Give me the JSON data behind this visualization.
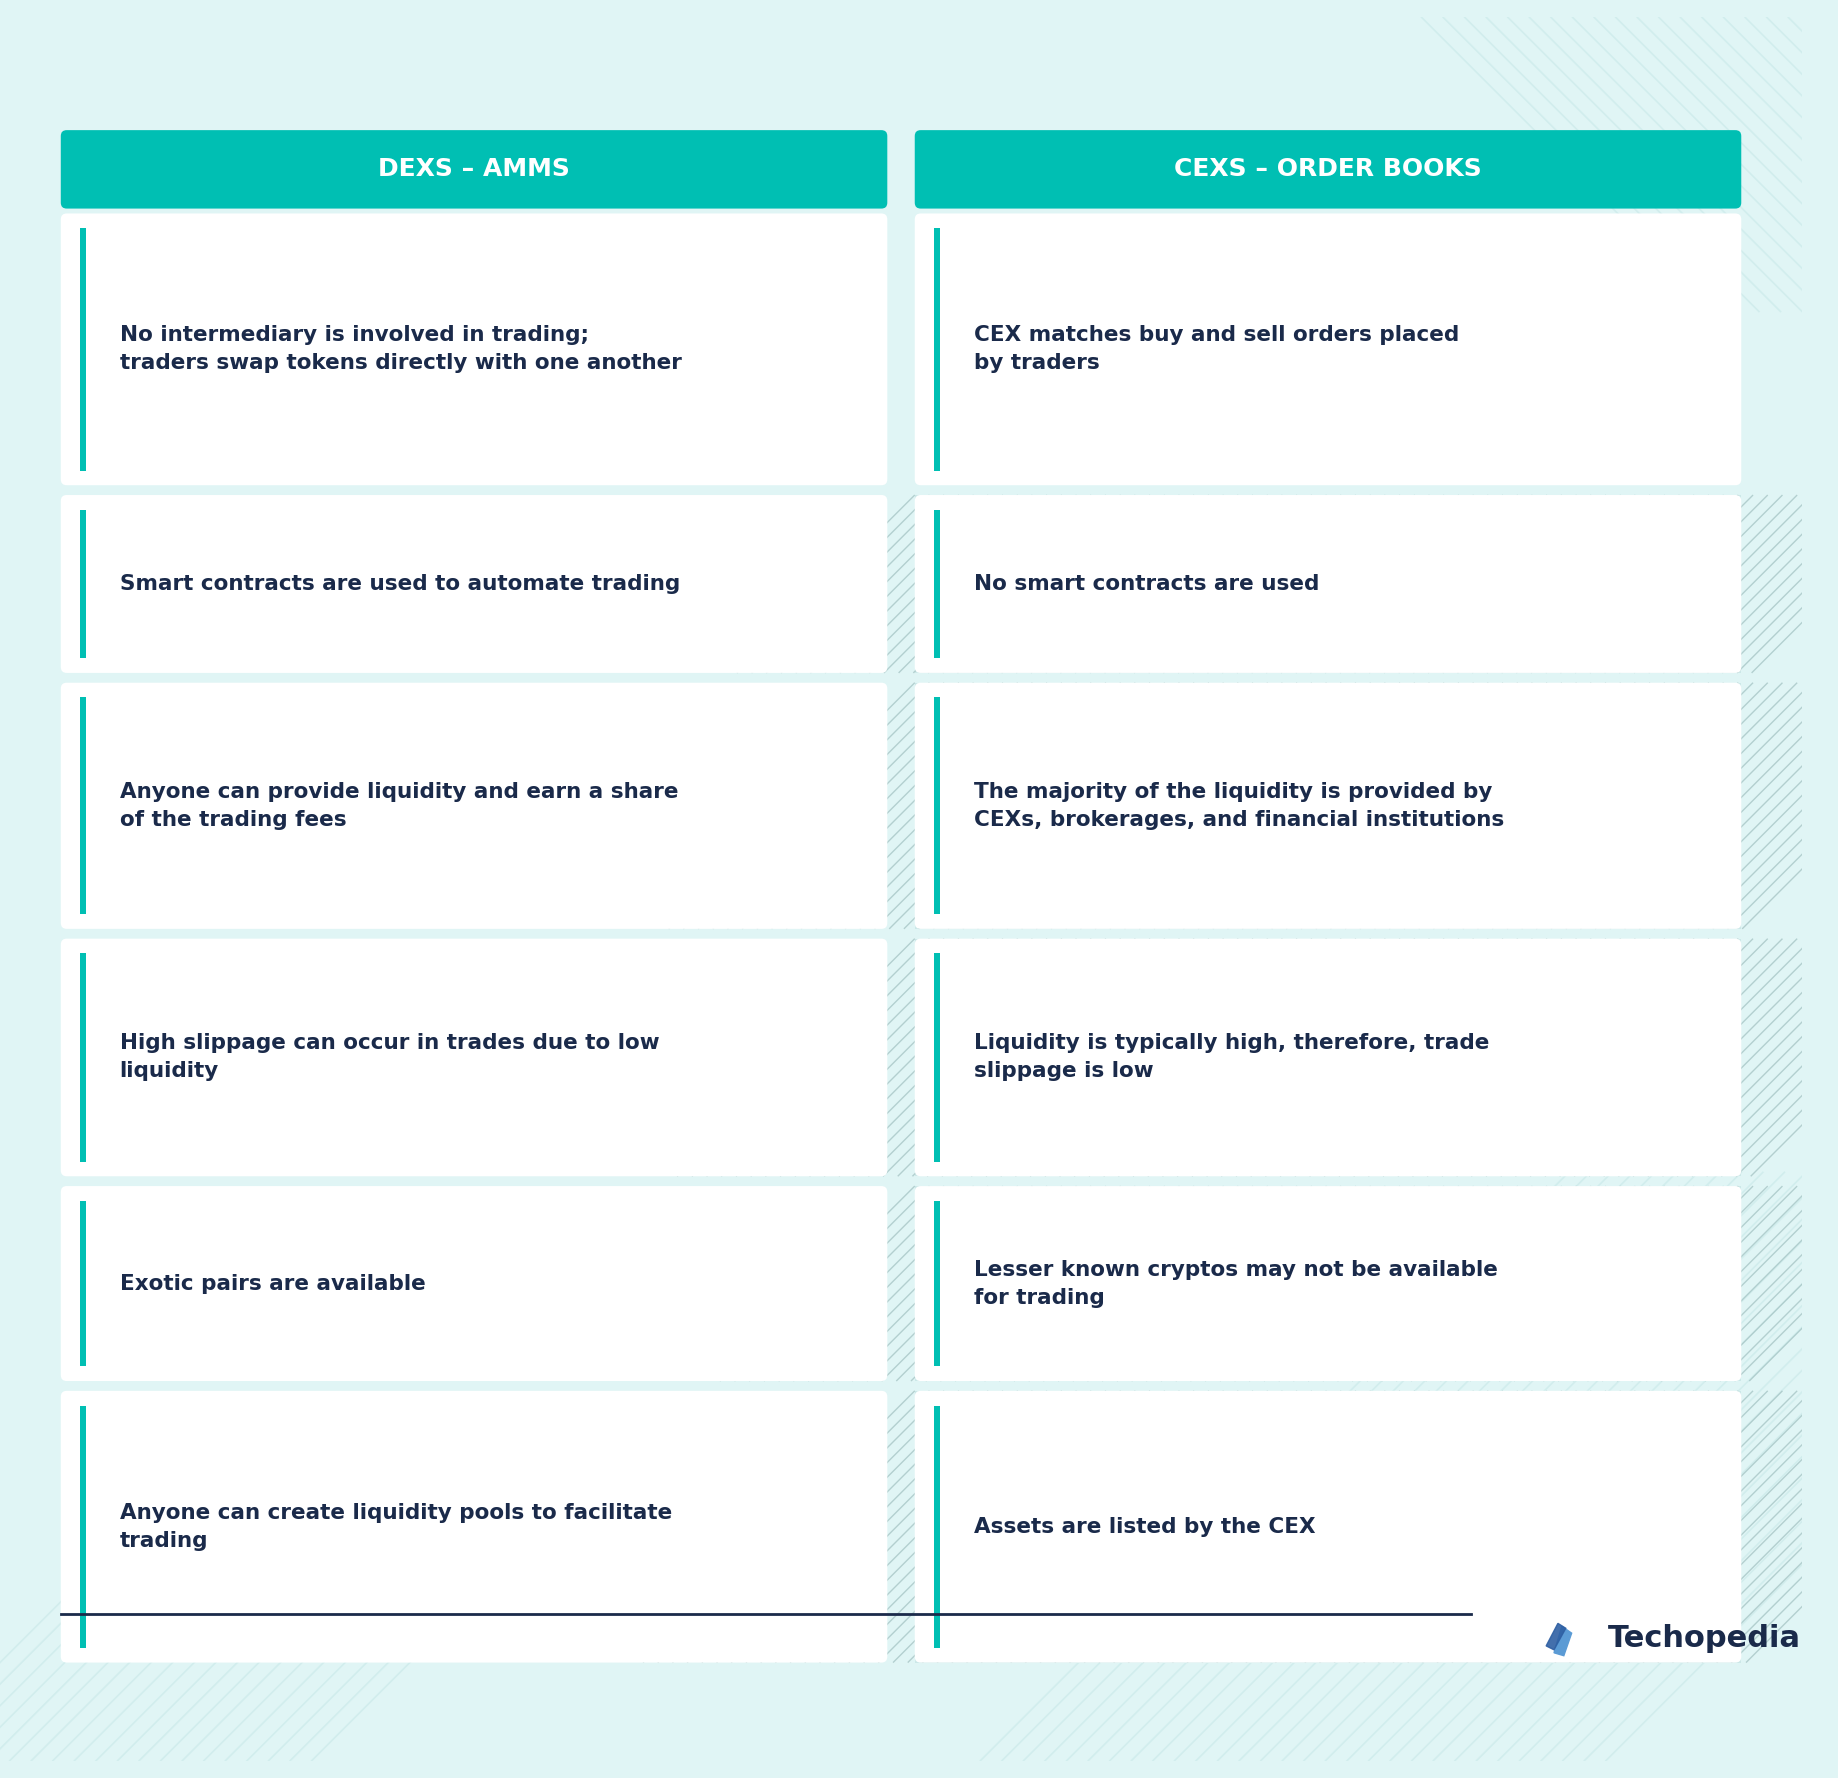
{
  "bg_color": "#e0f5f5",
  "header_color": "#00bfb3",
  "header_text_color": "#ffffff",
  "cell_bg_color": "#ffffff",
  "accent_bar_color": "#00bfb3",
  "text_color": "#1a2a4a",
  "divider_color": "#b0d8d8",
  "separator_line_color": "#1a2a4a",
  "left_header": "DEXS – AMMS",
  "right_header": "CEXS – ORDER BOOKS",
  "left_items": [
    "No intermediary is involved in trading;\ntraders swap tokens directly with one another",
    "Smart contracts are used to automate trading",
    "Anyone can provide liquidity and earn a share\nof the trading fees",
    "High slippage can occur in trades due to low\nliquidity",
    "Exotic pairs are available",
    "Anyone can create liquidity pools to facilitate\ntrading"
  ],
  "right_items": [
    "CEX matches buy and sell orders placed\nby traders",
    "No smart contracts are used",
    "The majority of the liquidity is provided by\nCEXs, brokerages, and financial institutions",
    "Liquidity is typically high, therefore, trade\nslippage is low",
    "Lesser known cryptos may not be available\nfor trading",
    "Assets are listed by the CEX"
  ],
  "techopedia_text": "Techopedia",
  "techopedia_color": "#1a2a4a",
  "header_font_size": 18,
  "cell_font_size": 15.5,
  "logo_font_size": 22
}
